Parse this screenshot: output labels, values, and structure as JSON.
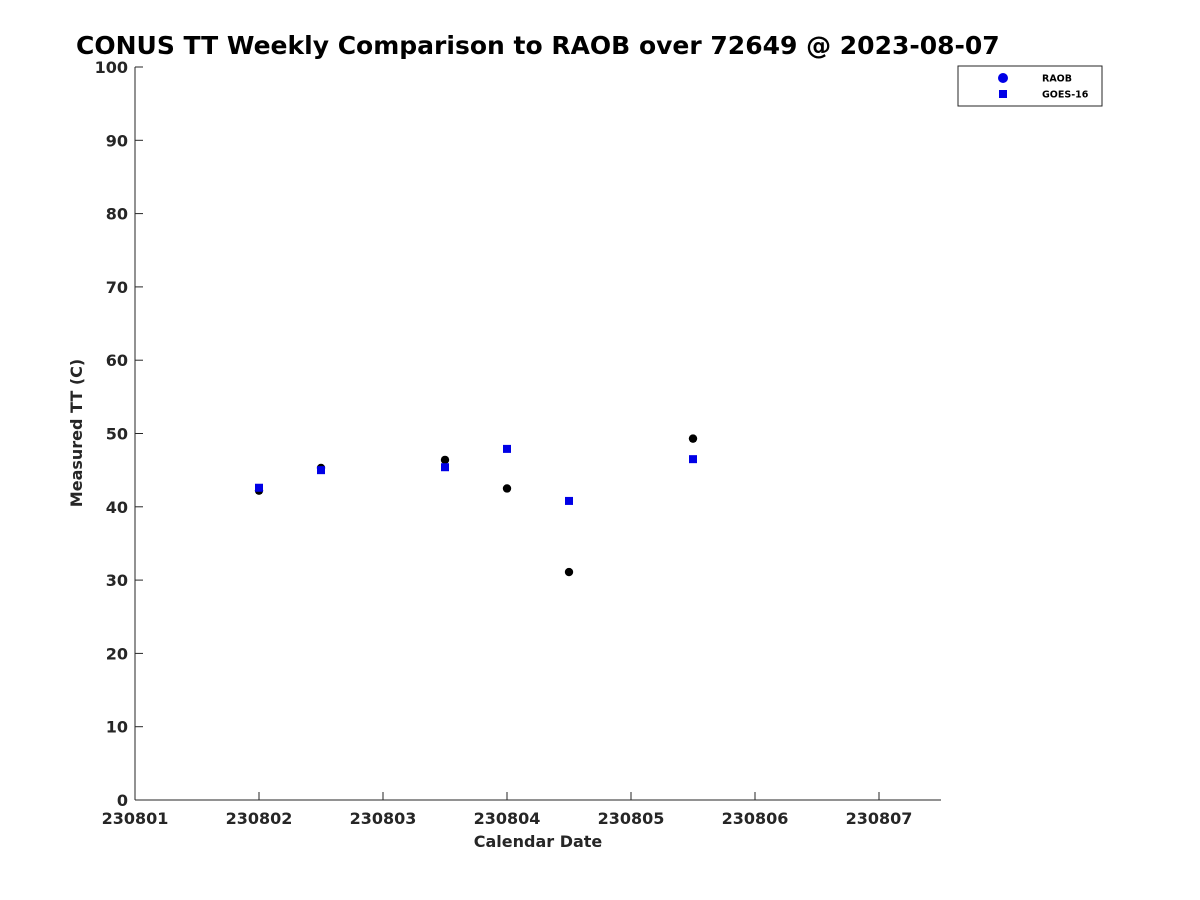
{
  "chart_data": {
    "type": "scatter",
    "title": "CONUS TT Weekly Comparison to RAOB over 72649 @ 2023-08-07",
    "xlabel": "Calendar Date",
    "ylabel": "Measured TT (C)",
    "xlim": [
      230801,
      230807.5
    ],
    "ylim": [
      0,
      100
    ],
    "xticks": [
      230801,
      230802,
      230803,
      230804,
      230805,
      230806,
      230807
    ],
    "xtick_labels": [
      "230801",
      "230802",
      "230803",
      "230804",
      "230805",
      "230806",
      "230807"
    ],
    "yticks": [
      0,
      10,
      20,
      30,
      40,
      50,
      60,
      70,
      80,
      90,
      100
    ],
    "ytick_labels": [
      "0",
      "10",
      "20",
      "30",
      "40",
      "50",
      "60",
      "70",
      "80",
      "90",
      "100"
    ],
    "grid": false,
    "legend_position": "top-right outside",
    "series": [
      {
        "name": "RAOB",
        "marker": "circle",
        "color": "#000000",
        "legend_color": "#0000e6",
        "points": [
          {
            "x": 230802.0,
            "y": 42.2
          },
          {
            "x": 230802.5,
            "y": 45.3
          },
          {
            "x": 230803.5,
            "y": 46.4
          },
          {
            "x": 230804.0,
            "y": 42.5
          },
          {
            "x": 230804.5,
            "y": 31.1
          },
          {
            "x": 230805.5,
            "y": 49.3
          }
        ]
      },
      {
        "name": "GOES-16",
        "marker": "square",
        "color": "#0000e6",
        "legend_color": "#0000e6",
        "points": [
          {
            "x": 230802.0,
            "y": 42.6
          },
          {
            "x": 230802.5,
            "y": 45.0
          },
          {
            "x": 230803.5,
            "y": 45.4
          },
          {
            "x": 230804.0,
            "y": 47.9
          },
          {
            "x": 230804.5,
            "y": 40.8
          },
          {
            "x": 230805.5,
            "y": 46.5
          }
        ]
      }
    ]
  }
}
